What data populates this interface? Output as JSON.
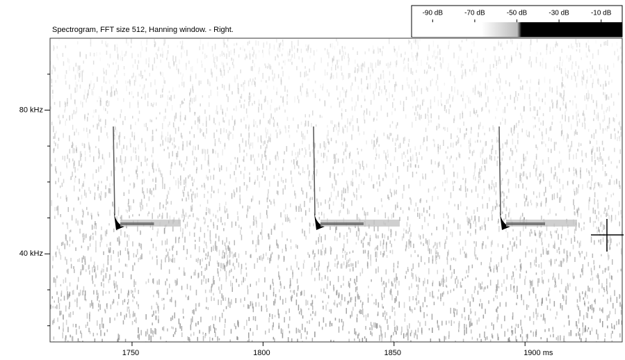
{
  "chart_data": {
    "type": "spectrogram",
    "title": "Spectrogram, FFT size 512, Hanning window. - Right.",
    "xlim": [
      1718.7,
      1937.1
    ],
    "xticks": [
      1750,
      1800,
      1850,
      {
        "value": 1900,
        "label": "1900 ms"
      }
    ],
    "ylim": [
      15.5,
      100
    ],
    "yticks": [
      {
        "value": 80,
        "label": "80 kHz"
      },
      {
        "value": 40,
        "label": "40 kHz"
      }
    ],
    "yminorticks": [
      90,
      70,
      60,
      50,
      30,
      20
    ],
    "colorbar": {
      "lim": [
        -100,
        0
      ],
      "ticks": [
        {
          "value": -90,
          "label": "-90 dB"
        },
        {
          "value": -70,
          "label": "-70 dB"
        },
        {
          "value": -50,
          "label": "-50 dB"
        },
        {
          "value": -30,
          "label": "-30 dB"
        },
        {
          "value": -10,
          "label": "-10 dB"
        }
      ]
    }
  }
}
